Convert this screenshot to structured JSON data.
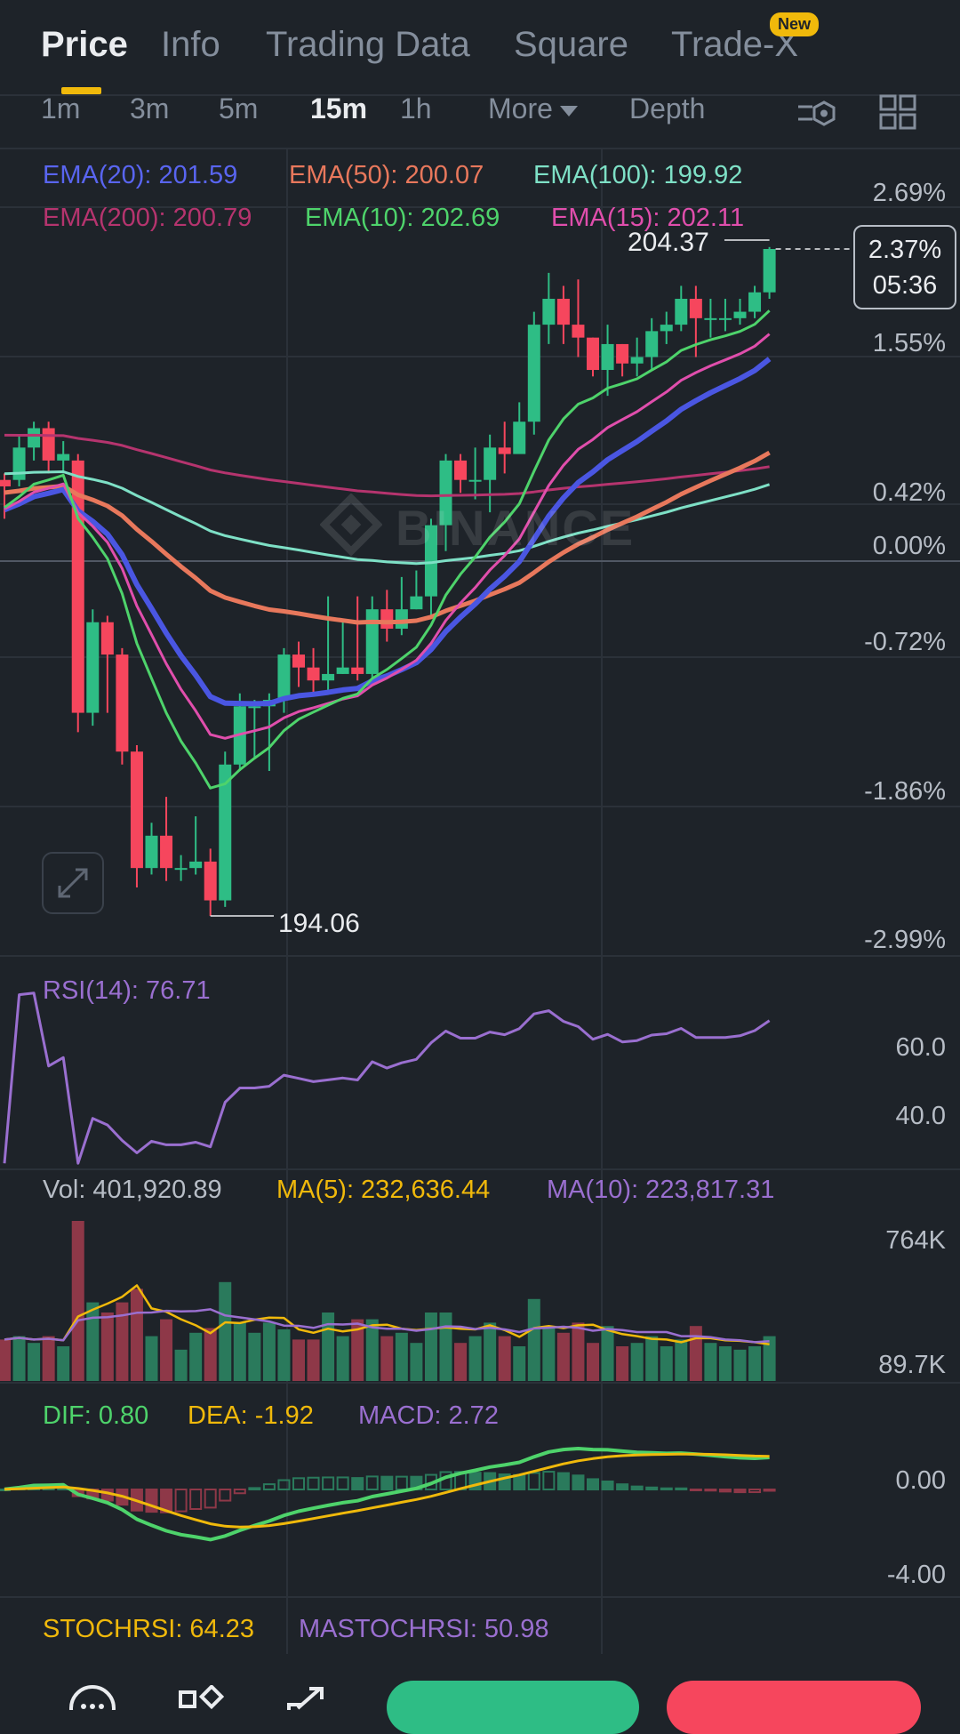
{
  "tabs": [
    {
      "label": "Price",
      "active": true
    },
    {
      "label": "Info",
      "active": false
    },
    {
      "label": "Trading Data",
      "active": false
    },
    {
      "label": "Square",
      "active": false
    },
    {
      "label": "Trade-X",
      "active": false
    }
  ],
  "new_badge": "New",
  "intervals": {
    "items": [
      "1m",
      "3m",
      "5m",
      "15m",
      "1h"
    ],
    "active": "15m",
    "more": "More",
    "depth": "Depth"
  },
  "ema": {
    "ema20": "EMA(20): 201.59",
    "ema50": "EMA(50): 200.07",
    "ema100": "EMA(100): 199.92",
    "ema200": "EMA(200): 200.79",
    "ema10": "EMA(10): 202.69",
    "ema15": "EMA(15): 202.11"
  },
  "colors": {
    "ema20": "#4a56e2",
    "ema50": "#e8785c",
    "ema100": "#7ee0c6",
    "ema200": "#b5346e",
    "ema10": "#4ed36b",
    "ema15": "#e04eac",
    "up": "#2ebd85",
    "down": "#f6465d",
    "rsi": "#9a6fd0",
    "ma5": "#f0b90b",
    "ma10": "#9a6fd0",
    "dif": "#4ed36b",
    "dea": "#f0b90b"
  },
  "price_axis": [
    "2.69%",
    "1.55%",
    "0.42%",
    "0.00%",
    "-0.72%",
    "-1.86%",
    "-2.99%"
  ],
  "current": {
    "pct": "2.37%",
    "countdown": "05:36"
  },
  "high_label": "204.37",
  "low_label": "194.06",
  "watermark": "BINANCE",
  "rsi": {
    "label": "RSI(14): 76.71",
    "axis": [
      "60.0",
      "40.0"
    ]
  },
  "volume": {
    "vol": "Vol: 401,920.89",
    "ma5": "MA(5): 232,636.44",
    "ma10": "MA(10): 223,817.31",
    "axis": [
      "764K",
      "89.7K"
    ]
  },
  "macd": {
    "dif": "DIF: 0.80",
    "dea": "DEA: -1.92",
    "macd": "MACD: 2.72",
    "axis": [
      "0.00",
      "-4.00"
    ]
  },
  "stochrsi": {
    "stoch": "STOCHRSI: 64.23",
    "ma": "MASTOCHRSI: 50.98"
  },
  "chart_data": {
    "type": "candlestick",
    "interval": "15m",
    "ohlc": [
      [
        200.8,
        200.7,
        200.9,
        200.2
      ],
      [
        200.8,
        201.3,
        201.5,
        200.7
      ],
      [
        201.3,
        201.6,
        201.7,
        201.1
      ],
      [
        201.6,
        201.1,
        201.7,
        200.9
      ],
      [
        201.1,
        201.2,
        201.4,
        200.9
      ],
      [
        201.1,
        197.2,
        201.2,
        196.9
      ],
      [
        197.2,
        198.6,
        198.8,
        197.0
      ],
      [
        198.6,
        198.1,
        198.7,
        197.2
      ],
      [
        198.1,
        196.6,
        198.2,
        196.4
      ],
      [
        196.6,
        194.8,
        196.7,
        194.5
      ],
      [
        194.8,
        195.3,
        195.5,
        194.7
      ],
      [
        195.3,
        194.8,
        195.9,
        194.6
      ],
      [
        194.8,
        194.8,
        195.0,
        194.6
      ],
      [
        194.8,
        194.9,
        195.6,
        194.7
      ],
      [
        194.9,
        194.3,
        195.1,
        194.06
      ],
      [
        194.3,
        196.4,
        196.6,
        194.2
      ],
      [
        196.4,
        197.3,
        197.5,
        196.3
      ],
      [
        197.3,
        197.3,
        197.4,
        196.5
      ],
      [
        197.3,
        197.4,
        197.5,
        196.3
      ],
      [
        197.4,
        198.1,
        198.2,
        197.2
      ],
      [
        198.1,
        197.9,
        198.3,
        197.6
      ],
      [
        197.9,
        197.7,
        198.2,
        197.5
      ],
      [
        197.7,
        197.8,
        199.0,
        197.5
      ],
      [
        197.8,
        197.9,
        198.6,
        197.8
      ],
      [
        197.9,
        197.8,
        199.0,
        197.7
      ],
      [
        197.8,
        198.8,
        199.0,
        197.7
      ],
      [
        198.8,
        198.5,
        199.1,
        198.3
      ],
      [
        198.5,
        198.8,
        199.3,
        198.4
      ],
      [
        198.8,
        199.0,
        199.4,
        198.8
      ],
      [
        199.0,
        200.1,
        200.2,
        198.7
      ],
      [
        200.1,
        201.1,
        201.2,
        199.7
      ],
      [
        201.1,
        200.8,
        201.2,
        200.6
      ],
      [
        200.8,
        200.8,
        201.3,
        200.5
      ],
      [
        200.8,
        201.3,
        201.5,
        200.3
      ],
      [
        201.3,
        201.2,
        201.7,
        200.9
      ],
      [
        201.2,
        201.7,
        202.0,
        201.5
      ],
      [
        201.7,
        203.2,
        203.4,
        201.5
      ],
      [
        203.2,
        203.6,
        204.0,
        202.9
      ],
      [
        203.6,
        203.2,
        203.8,
        202.9
      ],
      [
        203.2,
        203.0,
        203.9,
        202.7
      ],
      [
        203.0,
        202.5,
        203.0,
        202.4
      ],
      [
        202.5,
        202.9,
        203.2,
        202.1
      ],
      [
        202.9,
        202.6,
        202.9,
        202.4
      ],
      [
        202.6,
        202.7,
        203.0,
        202.4
      ],
      [
        202.7,
        203.1,
        203.3,
        202.5
      ],
      [
        203.1,
        203.2,
        203.4,
        202.9
      ],
      [
        203.2,
        203.6,
        203.8,
        203.1
      ],
      [
        203.6,
        203.3,
        203.8,
        202.7
      ],
      [
        203.3,
        203.3,
        203.6,
        203.0
      ],
      [
        203.3,
        203.3,
        203.6,
        203.1
      ],
      [
        203.3,
        203.4,
        203.6,
        203.2
      ],
      [
        203.4,
        203.7,
        203.8,
        203.3
      ],
      [
        203.7,
        204.37,
        204.4,
        203.6
      ]
    ],
    "price_range": [
      194.06,
      204.37
    ],
    "rsi_range": [
      20,
      80
    ],
    "macd_range": [
      -5,
      3
    ]
  }
}
